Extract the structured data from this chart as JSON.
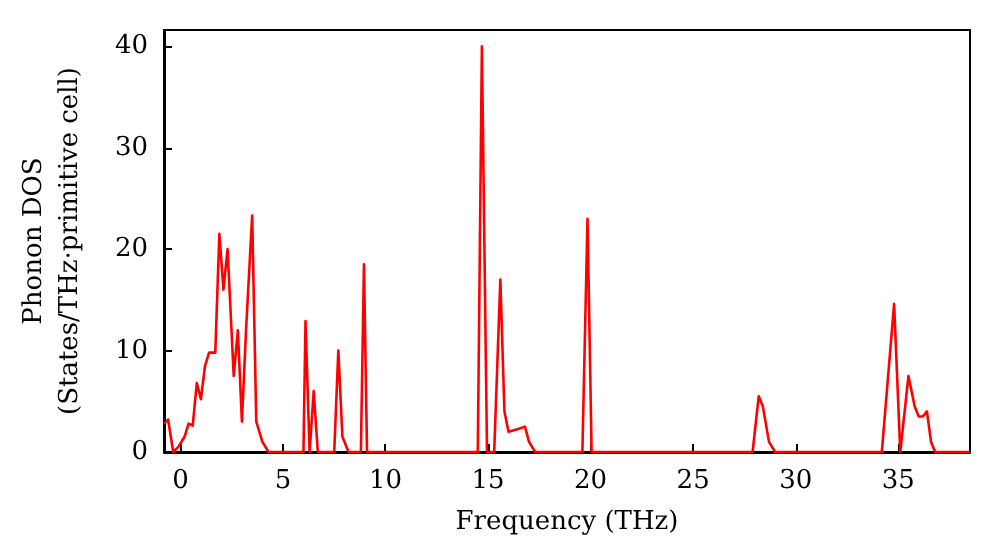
{
  "chart_data": {
    "type": "line",
    "xlabel": "Frequency (THz)",
    "ylabel": "Phonon DOS\n(States/THz·primitive cell)",
    "xlim": [
      -0.8,
      38.5
    ],
    "ylim": [
      0,
      41.6
    ],
    "xticks": [
      0,
      5,
      10,
      15,
      20,
      25,
      30,
      35
    ],
    "yticks": [
      0,
      10,
      20,
      30,
      40
    ],
    "grid": false,
    "marker": "none",
    "line_style": "solid",
    "series": [
      {
        "color": "#ff0000",
        "x": [
          -0.8,
          -0.6,
          -0.35,
          -0.1,
          0.2,
          0.4,
          0.6,
          0.8,
          1.0,
          1.2,
          1.4,
          1.7,
          1.9,
          2.1,
          2.3,
          2.6,
          2.8,
          3.0,
          3.2,
          3.5,
          3.7,
          4.0,
          4.3,
          6.0,
          6.1,
          6.3,
          6.5,
          6.7,
          7.5,
          7.7,
          7.9,
          8.2,
          8.8,
          8.95,
          9.1,
          14.5,
          14.7,
          14.95,
          15.3,
          15.6,
          15.8,
          16.0,
          16.5,
          16.8,
          17.0,
          17.3,
          19.6,
          19.85,
          20.05,
          27.9,
          28.2,
          28.4,
          28.7,
          29.0,
          34.2,
          34.8,
          35.1,
          35.5,
          35.8,
          36.0,
          36.2,
          36.4,
          36.6,
          36.8,
          38.5
        ],
        "values": [
          2.8,
          3.2,
          0,
          0.5,
          1.5,
          2.8,
          2.6,
          6.8,
          5.2,
          8.5,
          9.8,
          9.8,
          21.5,
          16,
          20,
          7.5,
          12,
          3,
          12,
          23.3,
          3,
          1,
          0,
          0,
          12.9,
          0,
          6,
          0,
          0,
          10,
          1.5,
          0,
          0,
          18.5,
          0,
          0,
          40,
          0,
          0,
          17,
          4,
          2,
          2.3,
          2.5,
          1,
          0,
          0,
          23,
          0,
          0,
          5.5,
          4.5,
          1,
          0,
          0,
          14.6,
          0,
          7.5,
          4.5,
          3.5,
          3.5,
          4,
          1,
          0,
          0
        ]
      }
    ]
  }
}
